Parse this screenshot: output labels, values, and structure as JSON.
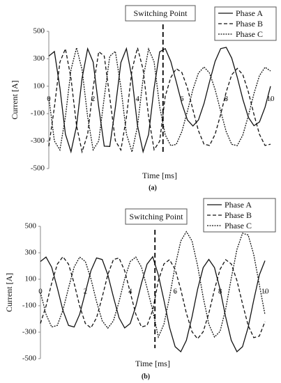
{
  "chart_data": [
    {
      "type": "line",
      "caption": "(a)",
      "xlabel": "Time [ms]",
      "ylabel": "Current [A]",
      "annotations": [
        {
          "text": "Switching Point",
          "x": 5.15
        }
      ],
      "xlim": [
        0,
        10
      ],
      "xticks": [
        0,
        2,
        4,
        6,
        8,
        10
      ],
      "ylim": [
        -500,
        500
      ],
      "yticks": [
        -500,
        -300,
        -100,
        100,
        300,
        500
      ],
      "grid": false,
      "legend": "upper right",
      "x": [
        0,
        0.25,
        0.5,
        0.75,
        1,
        1.25,
        1.5,
        1.75,
        2,
        2.25,
        2.5,
        2.75,
        3,
        3.25,
        3.5,
        3.75,
        4,
        4.25,
        4.5,
        4.75,
        5,
        5.25,
        5.5,
        5.75,
        6,
        6.25,
        6.5,
        6.75,
        7,
        7.25,
        7.5,
        7.75,
        8,
        8.25,
        8.5,
        8.75,
        9,
        9.25,
        9.5,
        9.75,
        10
      ],
      "series": [
        {
          "name": "Phase A",
          "color": "#111111",
          "linestyle": "solid",
          "values": [
            320,
            353,
            89,
            -249,
            -378,
            -190,
            158,
            373,
            276,
            -53,
            -337,
            -339,
            -56,
            273,
            374,
            161,
            -187,
            -378,
            -252,
            86,
            351,
            374,
            281,
            132,
            -26,
            -146,
            -190,
            -146,
            -26,
            132,
            281,
            374,
            383,
            305,
            165,
            4,
            -127,
            -188,
            -161,
            -54,
            100
          ]
        },
        {
          "name": "Phase B",
          "color": "#111111",
          "linestyle": "dashed",
          "values": [
            -338,
            -54,
            275,
            373,
            158,
            -189,
            -378,
            -249,
            89,
            352,
            320,
            20,
            -297,
            -365,
            -127,
            218,
            380,
            223,
            -121,
            -363,
            -301,
            27,
            163,
            228,
            200,
            88,
            -72,
            -225,
            -323,
            -332,
            -251,
            -105,
            58,
            183,
            230,
            183,
            58,
            -105,
            -251,
            -332,
            -323
          ]
        },
        {
          "name": "Phase C",
          "color": "#111111",
          "linestyle": "dotted",
          "values": [
            18,
            -299,
            -365,
            -124,
            220,
            380,
            221,
            -124,
            -364,
            -299,
            17,
            319,
            354,
            92,
            -247,
            -379,
            -193,
            155,
            372,
            278,
            -50,
            -255,
            -333,
            -324,
            -231,
            -82,
            76,
            196,
            240,
            196,
            76,
            -82,
            -231,
            -324,
            -333,
            -255,
            -115,
            46,
            177,
            238,
            211
          ]
        }
      ]
    },
    {
      "type": "line",
      "caption": "(b)",
      "xlabel": "Time [ms]",
      "ylabel": "Current [A]",
      "annotations": [
        {
          "text": "Switching Point",
          "x": 5.1
        }
      ],
      "xlim": [
        0,
        10
      ],
      "xticks": [
        0,
        2,
        4,
        6,
        8,
        10
      ],
      "ylim": [
        -500,
        500
      ],
      "yticks": [
        -500,
        -300,
        -100,
        100,
        300,
        500
      ],
      "grid": false,
      "legend": "upper right",
      "x": [
        0,
        0.25,
        0.5,
        0.75,
        1,
        1.25,
        1.5,
        1.75,
        2,
        2.25,
        2.5,
        2.75,
        3,
        3.25,
        3.5,
        3.75,
        4,
        4.25,
        4.5,
        4.75,
        5,
        5.25,
        5.5,
        5.75,
        6,
        6.25,
        6.5,
        6.75,
        7,
        7.25,
        7.5,
        7.75,
        8,
        8.25,
        8.5,
        8.75,
        9,
        9.25,
        9.5,
        9.75,
        10
      ],
      "series": [
        {
          "name": "Phase A",
          "color": "#111111",
          "linestyle": "solid",
          "values": [
            234,
            268,
            191,
            35,
            -135,
            -249,
            -261,
            -164,
            0,
            164,
            261,
            249,
            135,
            -35,
            -191,
            -268,
            -234,
            -103,
            70,
            214,
            270,
            132,
            -58,
            -263,
            -410,
            -448,
            -362,
            -184,
            24,
            188,
            250,
            188,
            24,
            -184,
            -362,
            -448,
            -410,
            -263,
            -58,
            132,
            240
          ]
        },
        {
          "name": "Phase B",
          "color": "#111111",
          "linestyle": "dashed",
          "values": [
            -234,
            -103,
            70,
            214,
            270,
            214,
            70,
            -103,
            -234,
            -268,
            -191,
            -35,
            135,
            249,
            261,
            164,
            0,
            -164,
            -261,
            -249,
            -135,
            90,
            216,
            248,
            175,
            22,
            -157,
            -297,
            -350,
            -297,
            -157,
            22,
            175,
            248,
            216,
            90,
            -86,
            -249,
            -341,
            -330,
            -220
          ]
        },
        {
          "name": "Phase C",
          "color": "#111111",
          "linestyle": "dotted",
          "values": [
            0,
            -164,
            -261,
            -249,
            -135,
            35,
            191,
            268,
            234,
            103,
            -70,
            -214,
            -270,
            -214,
            -70,
            103,
            234,
            268,
            191,
            35,
            -135,
            -337,
            -240,
            -36,
            202,
            389,
            460,
            389,
            202,
            -36,
            -240,
            -337,
            -294,
            -126,
            108,
            325,
            448,
            434,
            287,
            60,
            -167
          ]
        }
      ]
    }
  ]
}
